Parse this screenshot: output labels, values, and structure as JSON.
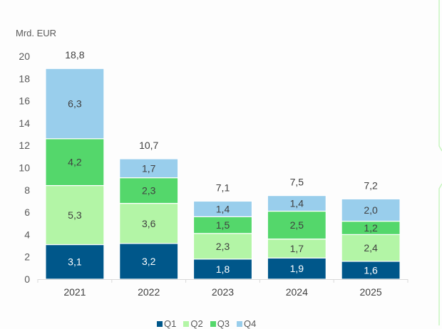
{
  "chart_data": {
    "type": "bar",
    "stacked": true,
    "title": "",
    "unit_label": "Mrd. EUR",
    "xlabel": "",
    "ylabel": "Mrd. EUR",
    "ylim": [
      0,
      20
    ],
    "yticks": [
      0,
      2,
      4,
      6,
      8,
      10,
      12,
      14,
      16,
      18,
      20
    ],
    "ytick_labels": [
      "0",
      "2",
      "4",
      "6",
      "8",
      "10",
      "12",
      "14",
      "16",
      "18",
      "20"
    ],
    "grid": false,
    "legend_position": "bottom",
    "categories": [
      "2021",
      "2022",
      "2023",
      "2024",
      "2025"
    ],
    "series": [
      {
        "name": "Q1",
        "color": "#00578a",
        "values": [
          3.1,
          3.2,
          1.8,
          1.9,
          1.6
        ],
        "labels": [
          "3,1",
          "3,2",
          "1,8",
          "1,9",
          "1,6"
        ]
      },
      {
        "name": "Q2",
        "color": "#b3f5a6",
        "values": [
          5.3,
          3.6,
          2.3,
          1.7,
          2.4
        ],
        "labels": [
          "5,3",
          "3,6",
          "2,3",
          "1,7",
          "2,4"
        ]
      },
      {
        "name": "Q3",
        "color": "#54d76b",
        "values": [
          4.2,
          2.3,
          1.5,
          2.5,
          1.2
        ],
        "labels": [
          "4,2",
          "2,3",
          "1,5",
          "2,5",
          "1,2"
        ]
      },
      {
        "name": "Q4",
        "color": "#99ceec",
        "values": [
          6.3,
          1.7,
          1.4,
          1.4,
          2.0
        ],
        "labels": [
          "6,3",
          "1,7",
          "1,4",
          "1,4",
          "2,0"
        ]
      }
    ],
    "totals": [
      18.8,
      10.7,
      7.1,
      7.5,
      7.2
    ],
    "total_labels": [
      "18,8",
      "10,7",
      "7,1",
      "7,5",
      "7,2"
    ]
  },
  "colors": {
    "axis": "#d9d9d9",
    "side_border": "#c8f5c0"
  }
}
